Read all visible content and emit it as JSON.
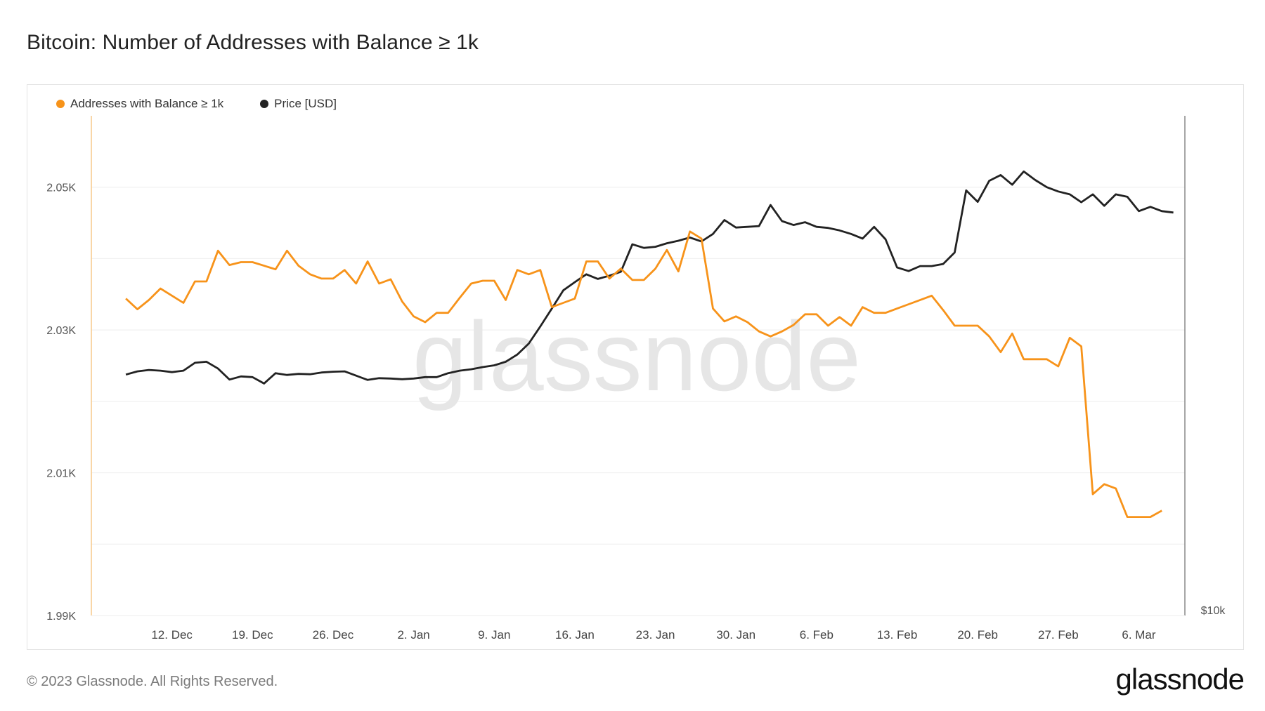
{
  "title": "Bitcoin: Number of Addresses with Balance ≥ 1k",
  "legend": {
    "addresses_label": "Addresses with Balance ≥ 1k",
    "price_label": "Price [USD]"
  },
  "colors": {
    "addresses": "#f7931a",
    "price": "#222222",
    "grid": "#eeeeee",
    "axis_text": "#555555"
  },
  "watermark": "glassnode",
  "footer": {
    "copyright": "© 2023 Glassnode. All Rights Reserved.",
    "logo": "glassnode"
  },
  "chart_data": {
    "type": "line",
    "x_ticks": [
      "12. Dec",
      "19. Dec",
      "26. Dec",
      "2. Jan",
      "9. Jan",
      "16. Jan",
      "23. Jan",
      "30. Jan",
      "6. Feb",
      "13. Feb",
      "20. Feb",
      "27. Feb",
      "6. Mar"
    ],
    "y_ticks": [
      "2.05K",
      "2.03K",
      "2.01K",
      "1.99K"
    ],
    "ylim": [
      1990,
      2060
    ],
    "right_axis_label": "$10k",
    "grid": true,
    "legend_position": "top-left",
    "series": [
      {
        "name": "Addresses with Balance ≥ 1k",
        "axis": "left",
        "start_date": "2022-12-08",
        "step_days": 1,
        "values": [
          2034.4,
          2032.9,
          2034.2,
          2035.8,
          2034.8,
          2033.8,
          2036.8,
          2036.8,
          2041.1,
          2039.1,
          2039.5,
          2039.5,
          2039.0,
          2038.5,
          2041.1,
          2039.0,
          2037.8,
          2037.2,
          2037.2,
          2038.4,
          2036.5,
          2039.6,
          2036.5,
          2037.1,
          2034.0,
          2031.9,
          2031.1,
          2032.4,
          2032.4,
          2034.5,
          2036.5,
          2036.9,
          2036.9,
          2034.2,
          2038.4,
          2037.8,
          2038.4,
          2033.2,
          2033.8,
          2034.4,
          2039.6,
          2039.6,
          2037.2,
          2038.6,
          2037.0,
          2037.0,
          2038.6,
          2041.2,
          2038.2,
          2043.8,
          2042.8,
          2033.0,
          2031.2,
          2031.9,
          2031.1,
          2029.8,
          2029.1,
          2029.8,
          2030.7,
          2032.2,
          2032.2,
          2030.6,
          2031.8,
          2030.6,
          2033.2,
          2032.4,
          2032.4,
          2033.0,
          2033.6,
          2034.2,
          2034.8,
          2032.8,
          2030.6,
          2030.6,
          2030.6,
          2029.1,
          2026.9,
          2029.5,
          2025.9,
          2025.9,
          2025.9,
          2024.9,
          2028.9,
          2027.7,
          2007.0,
          2008.4,
          2007.8,
          2003.8,
          2003.8,
          2003.8,
          2004.7
        ]
      },
      {
        "name": "Price [USD]",
        "axis": "right",
        "start_date": "2022-12-08",
        "step_days": 1,
        "values": [
          16750,
          16840,
          16880,
          16860,
          16820,
          16860,
          17080,
          17110,
          16920,
          16610,
          16700,
          16680,
          16500,
          16790,
          16740,
          16770,
          16760,
          16810,
          16830,
          16840,
          16720,
          16600,
          16650,
          16640,
          16620,
          16640,
          16680,
          16680,
          16790,
          16860,
          16900,
          16960,
          17010,
          17110,
          17310,
          17620,
          18100,
          18600,
          19110,
          19340,
          19560,
          19430,
          19520,
          19630,
          20400,
          20300,
          20330,
          20430,
          20500,
          20590,
          20480,
          20690,
          21080,
          20870,
          20890,
          20910,
          21500,
          21050,
          20940,
          21020,
          20890,
          20860,
          20790,
          20690,
          20560,
          20890,
          20540,
          19750,
          19650,
          19790,
          19790,
          19850,
          20170,
          21910,
          21590,
          22180,
          22340,
          22070,
          22440,
          22200,
          22000,
          21880,
          21800,
          21580,
          21800,
          21480,
          21800,
          21730,
          21330,
          21450,
          21330,
          21290
        ]
      }
    ],
    "price_axis_ticks": [
      "$10k"
    ]
  }
}
